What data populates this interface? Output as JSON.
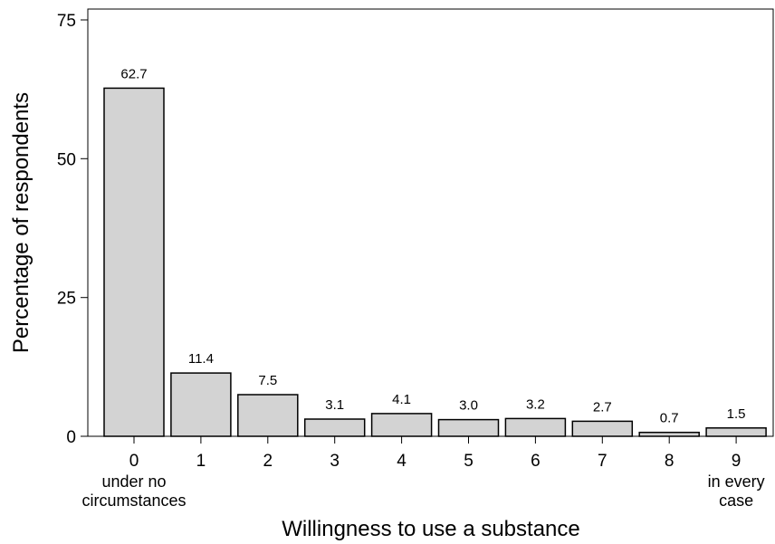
{
  "chart_data": {
    "type": "bar",
    "categories": [
      "0",
      "1",
      "2",
      "3",
      "4",
      "5",
      "6",
      "7",
      "8",
      "9"
    ],
    "category_sublabels": [
      [
        "under no",
        "circumstances"
      ],
      [],
      [],
      [],
      [],
      [],
      [],
      [],
      [],
      [
        "in every",
        "case"
      ]
    ],
    "values": [
      62.7,
      11.4,
      7.5,
      3.1,
      4.1,
      3.0,
      3.2,
      2.7,
      0.7,
      1.5
    ],
    "value_labels": [
      "62.7",
      "11.4",
      "7.5",
      "3.1",
      "4.1",
      "3.0",
      "3.2",
      "2.7",
      "0.7",
      "1.5"
    ],
    "xlabel": "Willingness to use a substance",
    "ylabel": "Percentage of respondents",
    "ylim": [
      0,
      76
    ],
    "yticks": [
      0,
      25,
      50,
      75
    ],
    "grid": false,
    "colors": {
      "bar_fill": "#d3d3d3",
      "bar_stroke": "#000000"
    }
  }
}
